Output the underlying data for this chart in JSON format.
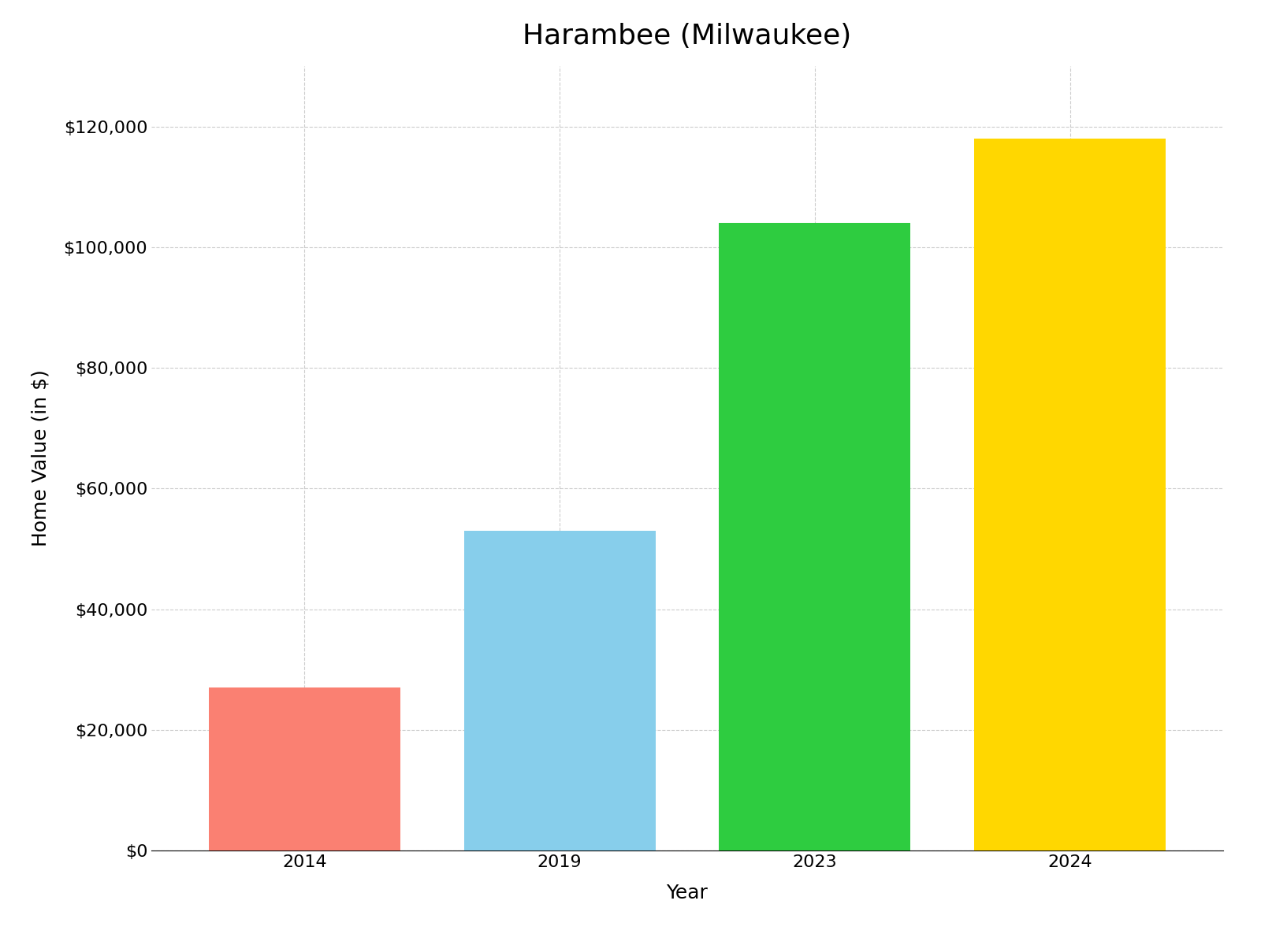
{
  "title": "Harambee (Milwaukee)",
  "xlabel": "Year",
  "ylabel": "Home Value (in $)",
  "categories": [
    "2014",
    "2019",
    "2023",
    "2024"
  ],
  "values": [
    27000,
    53000,
    104000,
    118000
  ],
  "bar_colors": [
    "#FA8072",
    "#87CEEB",
    "#2ECC40",
    "#FFD700"
  ],
  "ylim": [
    0,
    130000
  ],
  "yticks": [
    0,
    20000,
    40000,
    60000,
    80000,
    100000,
    120000
  ],
  "background_color": "#ffffff",
  "title_fontsize": 26,
  "axis_label_fontsize": 18,
  "tick_fontsize": 16,
  "bar_width": 0.75,
  "grid_color": "#aaaaaa",
  "grid_alpha": 0.6,
  "grid_linestyle": "--"
}
